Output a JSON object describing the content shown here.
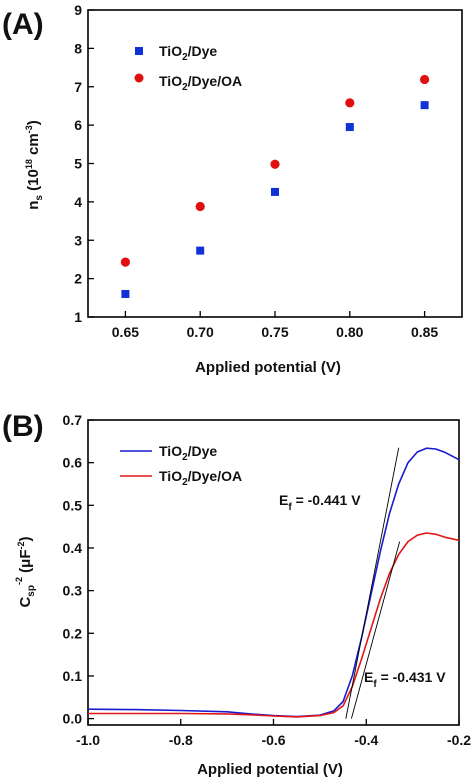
{
  "chart_data": [
    {
      "type": "scatter",
      "panel_label": "(A)",
      "xlabel": "Applied potential (V)",
      "ylabel": {
        "base": "n",
        "sub": "s",
        "open": " (10",
        "sup": "18",
        "mid": " cm",
        "sup2": "-3",
        "close": ")"
      },
      "xlim": [
        0.625,
        0.875
      ],
      "ylim": [
        1,
        9
      ],
      "xticks": [
        0.65,
        0.7,
        0.75,
        0.8,
        0.85
      ],
      "xtick_labels": [
        "0.65",
        "0.70",
        "0.75",
        "0.80",
        "0.85"
      ],
      "yticks": [
        1,
        2,
        3,
        4,
        5,
        6,
        7,
        8,
        9
      ],
      "ytick_labels": [
        "1",
        "2",
        "3",
        "4",
        "5",
        "6",
        "7",
        "8",
        "9"
      ],
      "grid": false,
      "legend_position": "top-left",
      "series": [
        {
          "legend": {
            "a": "TiO",
            "sub": "2",
            "b": "/Dye"
          },
          "marker": "square",
          "color": "#1030d8",
          "x": [
            0.65,
            0.7,
            0.75,
            0.8,
            0.85
          ],
          "y": [
            1.6,
            2.73,
            4.26,
            5.95,
            6.52
          ]
        },
        {
          "legend": {
            "a": "TiO",
            "sub": "2",
            "b": "/Dye/OA"
          },
          "marker": "circle",
          "color": "#e01010",
          "x": [
            0.65,
            0.7,
            0.75,
            0.8,
            0.85
          ],
          "y": [
            2.43,
            3.88,
            4.98,
            6.58,
            7.19
          ]
        }
      ]
    },
    {
      "type": "line",
      "panel_label": "(B)",
      "xlabel": "Applied potential (V)",
      "ylabel": {
        "base": "C",
        "sub": "sp",
        "sup": "-2",
        "open": " (μF",
        "sup2": "-2",
        "close": ")"
      },
      "xlim": [
        -1.0,
        -0.2
      ],
      "ylim": [
        -0.015,
        0.7
      ],
      "xticks": [
        -1.0,
        -0.8,
        -0.6,
        -0.4,
        -0.2
      ],
      "xtick_labels": [
        "-1.0",
        "-0.8",
        "-0.6",
        "-0.4",
        "-0.2"
      ],
      "yticks": [
        0.0,
        0.1,
        0.2,
        0.3,
        0.4,
        0.5,
        0.6,
        0.7
      ],
      "ytick_labels": [
        "0.0",
        "0.1",
        "0.2",
        "0.3",
        "0.4",
        "0.5",
        "0.6",
        "0.7"
      ],
      "grid": false,
      "legend_position": "top-left",
      "series": [
        {
          "legend": {
            "a": "TiO",
            "sub": "2",
            "b": "/Dye"
          },
          "color": "#1a1ad0",
          "x": [
            -1.0,
            -0.9,
            -0.8,
            -0.7,
            -0.65,
            -0.6,
            -0.55,
            -0.5,
            -0.47,
            -0.45,
            -0.43,
            -0.41,
            -0.39,
            -0.37,
            -0.35,
            -0.33,
            -0.31,
            -0.29,
            -0.27,
            -0.25,
            -0.23,
            -0.2
          ],
          "y": [
            0.022,
            0.021,
            0.019,
            0.016,
            0.011,
            0.007,
            0.005,
            0.008,
            0.018,
            0.04,
            0.1,
            0.19,
            0.29,
            0.39,
            0.48,
            0.55,
            0.6,
            0.625,
            0.634,
            0.632,
            0.624,
            0.607
          ]
        },
        {
          "legend": {
            "a": "TiO",
            "sub": "2",
            "b": "/Dye/OA"
          },
          "color": "#e01818",
          "x": [
            -1.0,
            -0.9,
            -0.8,
            -0.7,
            -0.65,
            -0.6,
            -0.55,
            -0.5,
            -0.47,
            -0.45,
            -0.43,
            -0.41,
            -0.39,
            -0.37,
            -0.35,
            -0.33,
            -0.31,
            -0.29,
            -0.27,
            -0.25,
            -0.23,
            -0.2
          ],
          "y": [
            0.012,
            0.012,
            0.012,
            0.011,
            0.009,
            0.006,
            0.004,
            0.007,
            0.014,
            0.03,
            0.075,
            0.14,
            0.21,
            0.28,
            0.34,
            0.385,
            0.415,
            0.43,
            0.435,
            0.432,
            0.425,
            0.418
          ]
        }
      ],
      "tangents": [
        {
          "x": [
            -0.444,
            -0.33
          ],
          "y": [
            0.0,
            0.635
          ]
        },
        {
          "x": [
            -0.432,
            -0.328
          ],
          "y": [
            0.0,
            0.415
          ]
        }
      ],
      "annotations": [
        {
          "pre": "E",
          "sub": "f",
          "text": " = -0.441 V"
        },
        {
          "pre": "E",
          "sub": "f",
          "text": " = -0.431 V"
        }
      ]
    }
  ]
}
